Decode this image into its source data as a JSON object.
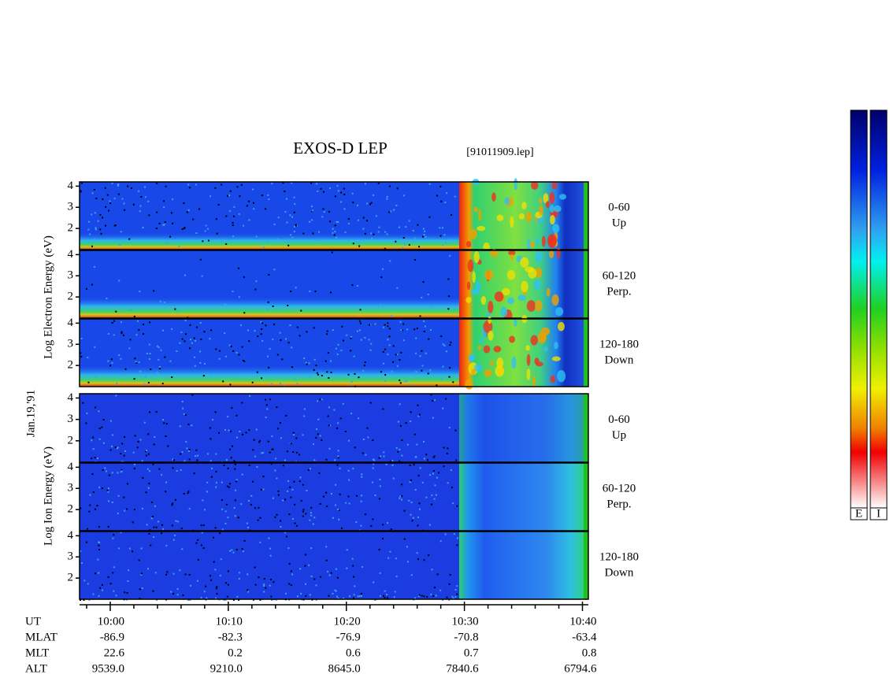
{
  "chart_data": {
    "type": "spectrogram",
    "title": "EXOS-D LEP",
    "file": "[91011909.lep]",
    "date": "Jan.19,'91",
    "groups": [
      {
        "label": "Log Electron Energy (eV)",
        "panels": [
          {
            "pitch": "0-60",
            "direction": "Up"
          },
          {
            "pitch": "60-120",
            "direction": "Perp."
          },
          {
            "pitch": "120-180",
            "direction": "Down"
          }
        ]
      },
      {
        "label": "Log Ion Energy (eV)",
        "panels": [
          {
            "pitch": "0-60",
            "direction": "Up"
          },
          {
            "pitch": "60-120",
            "direction": "Perp."
          },
          {
            "pitch": "120-180",
            "direction": "Down"
          }
        ]
      }
    ],
    "ylim": [
      1,
      4.2
    ],
    "yticks": [
      2,
      3,
      4
    ],
    "x_label": "UT",
    "xlim": [
      597.4,
      640.5
    ],
    "xticks": [
      {
        "value": 600,
        "label": "10:00"
      },
      {
        "value": 610,
        "label": "10:10"
      },
      {
        "value": 620,
        "label": "10:20"
      },
      {
        "value": 630,
        "label": "10:30"
      },
      {
        "value": 640,
        "label": "10:40"
      }
    ],
    "xminorticks": [
      598,
      602,
      604,
      606,
      608,
      612,
      614,
      616,
      618,
      622,
      624,
      626,
      628,
      632,
      634,
      636,
      638
    ],
    "ephemeris": [
      {
        "label": "MLAT",
        "values": [
          "-86.9",
          "-82.3",
          "-76.9",
          "-70.8",
          "-63.4"
        ]
      },
      {
        "label": "MLT",
        "values": [
          "22.6",
          "0.2",
          "0.6",
          "0.7",
          "0.8"
        ]
      },
      {
        "label": "ALT",
        "values": [
          "9539.0",
          "9210.0",
          "8645.0",
          "7840.6",
          "6794.6"
        ]
      }
    ],
    "colorbars": [
      "E",
      "I"
    ]
  }
}
